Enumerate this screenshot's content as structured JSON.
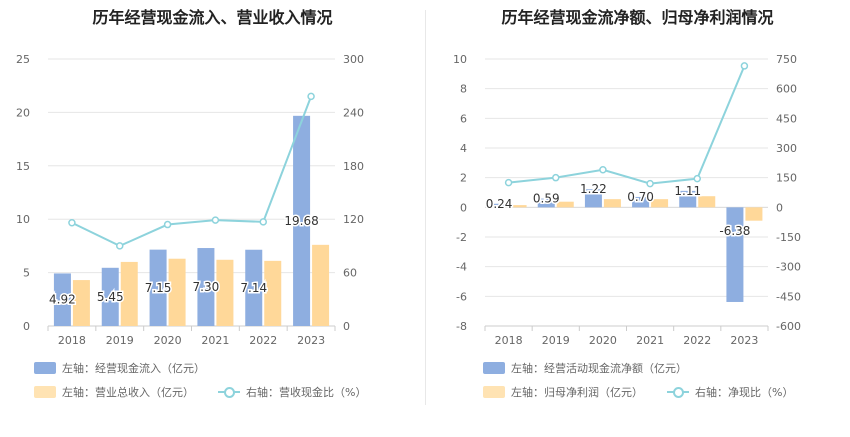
{
  "chart_data": [
    {
      "type": "bar",
      "title": "历年经营现金流入、营业收入情况",
      "categories": [
        "2018",
        "2019",
        "2020",
        "2021",
        "2022",
        "2023"
      ],
      "y_left": {
        "ylim": [
          0,
          25
        ],
        "ticks": [
          "0",
          "5",
          "10",
          "15",
          "20",
          "25"
        ]
      },
      "y_right": {
        "ylim": [
          0,
          300
        ],
        "ticks": [
          "0",
          "60",
          "120",
          "180",
          "240",
          "300"
        ]
      },
      "series": [
        {
          "name": "左轴：经营现金流入（亿元）",
          "axis": "left",
          "kind": "bar",
          "color": "#8eaee0",
          "values": [
            4.92,
            5.45,
            7.15,
            7.3,
            7.14,
            19.68
          ],
          "labels": [
            "4.92",
            "5.45",
            "7.15",
            "7.30",
            "7.14",
            "19.68"
          ]
        },
        {
          "name": "左轴：营业总收入（亿元）",
          "axis": "left",
          "kind": "bar",
          "color": "#ffd899",
          "values": [
            4.3,
            6.0,
            6.3,
            6.2,
            6.1,
            7.6
          ]
        },
        {
          "name": "右轴：营收现金比（%）",
          "axis": "right",
          "kind": "line",
          "color": "#8dd3dc",
          "values": [
            116,
            90,
            114,
            119,
            117,
            258
          ]
        }
      ],
      "legend": {
        "item1": "左轴：经营现金流入（亿元）",
        "item2": "左轴：营业总收入（亿元）",
        "item3": "右轴：营收现金比（%）"
      }
    },
    {
      "type": "bar",
      "title": "历年经营现金流净额、归母净利润情况",
      "categories": [
        "2018",
        "2019",
        "2020",
        "2021",
        "2022",
        "2023"
      ],
      "y_left": {
        "ylim": [
          -8,
          10
        ],
        "ticks": [
          "-8",
          "-6",
          "-4",
          "-2",
          "0",
          "2",
          "4",
          "6",
          "8",
          "10"
        ]
      },
      "y_right": {
        "ylim": [
          -600,
          750
        ],
        "ticks": [
          "-600",
          "-450",
          "-300",
          "-150",
          "0",
          "150",
          "300",
          "450",
          "600",
          "750"
        ]
      },
      "series": [
        {
          "name": "左轴：经营活动现金流净额（亿元）",
          "axis": "left",
          "kind": "bar",
          "color": "#8eaee0",
          "values": [
            0.24,
            0.59,
            1.22,
            0.7,
            1.11,
            -6.38
          ],
          "labels": [
            "0.24",
            "0.59",
            "1.22",
            "0.70",
            "1.11",
            "-6.38"
          ]
        },
        {
          "name": "左轴：归母净利润（亿元）",
          "axis": "left",
          "kind": "bar",
          "color": "#ffd899",
          "values": [
            0.15,
            0.38,
            0.55,
            0.55,
            0.75,
            -0.9
          ]
        },
        {
          "name": "右轴：净现比（%）",
          "axis": "right",
          "kind": "line",
          "color": "#8dd3dc",
          "values": [
            125,
            150,
            190,
            120,
            145,
            715
          ]
        }
      ],
      "legend": {
        "item1": "左轴：经营活动现金流净额（亿元）",
        "item2": "左轴：归母净利润（亿元）",
        "item3": "右轴：净现比（%）"
      }
    }
  ]
}
